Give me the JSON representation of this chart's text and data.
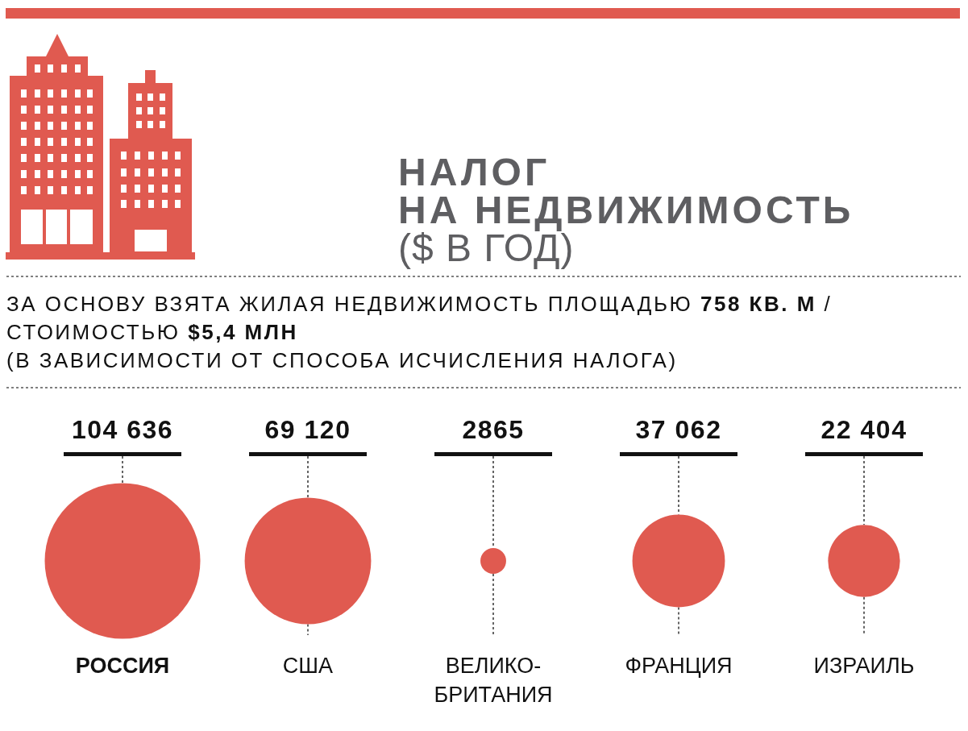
{
  "chart_data": {
    "type": "other",
    "title": "НАЛОГ НА НЕДВИЖИМОСТЬ",
    "subtitle": "($ В ГОД)",
    "annotations": [
      "ЗА ОСНОВУ ВЗЯТА ЖИЛАЯ НЕДВИЖИМОСТЬ ПЛОЩАДЬЮ 758 КВ. М / СТОИМОСТЬЮ $5,4 МЛН",
      "(В ЗАВИСИМОСТИ ОТ СПОСОБА ИСЧИСЛЕНИЯ НАЛОГА)"
    ],
    "categories": [
      "РОССИЯ",
      "США",
      "ВЕЛИКО-БРИТАНИЯ",
      "ФРАНЦИЯ",
      "ИЗРАИЛЬ"
    ],
    "values": [
      104636,
      69120,
      2865,
      37062,
      22404
    ],
    "value_labels": [
      "104 636",
      "69 120",
      "2865",
      "37 062",
      "22 404"
    ],
    "color": "#e05a50"
  }
}
